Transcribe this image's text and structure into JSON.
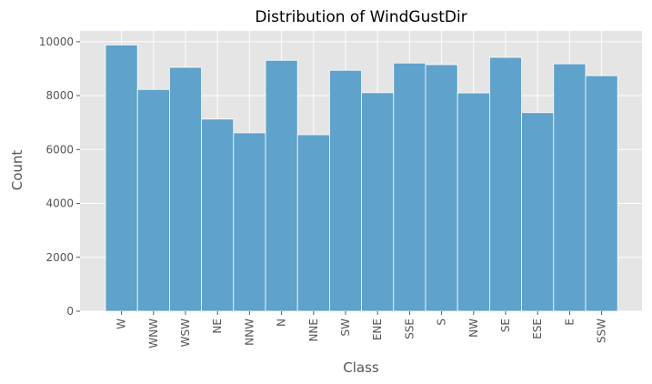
{
  "chart_data": {
    "type": "bar",
    "title": "Distribution of WindGustDir",
    "xlabel": "Class",
    "ylabel": "Count",
    "categories": [
      "W",
      "WNW",
      "WSW",
      "NE",
      "NNW",
      "N",
      "NNE",
      "SW",
      "ENE",
      "SSE",
      "S",
      "NW",
      "SE",
      "ESE",
      "E",
      "SSW"
    ],
    "values": [
      9880,
      8230,
      9050,
      7130,
      6620,
      9310,
      6550,
      8940,
      8110,
      9210,
      9150,
      8100,
      9420,
      7370,
      9180,
      8740
    ],
    "yticks": [
      0,
      2000,
      4000,
      6000,
      8000,
      10000
    ],
    "ylim": [
      0,
      10400
    ],
    "grid": true,
    "colors": {
      "bar": "#5fa2cb",
      "bar_edge": "#ffffff",
      "plot_background": "#e5e5e5",
      "grid": "#ffffff"
    }
  }
}
